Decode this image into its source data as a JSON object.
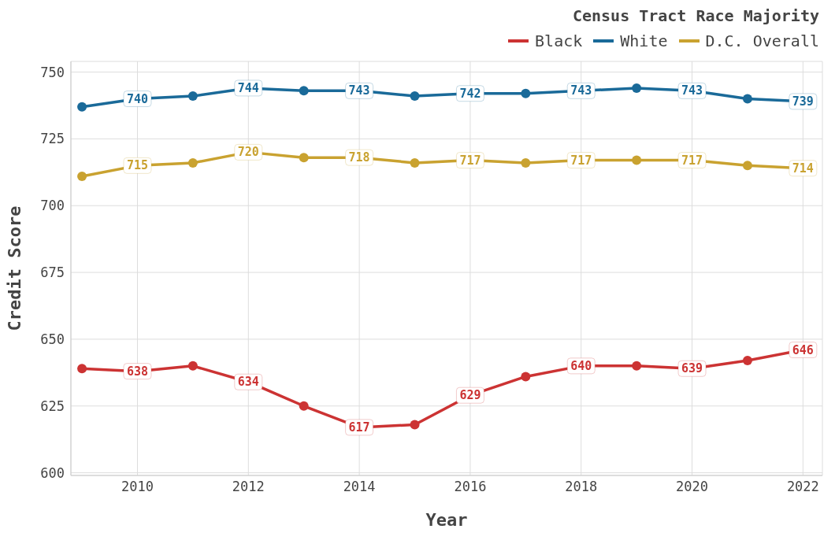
{
  "chart_data": {
    "type": "line",
    "xlabel": "Year",
    "ylabel": "Credit Score",
    "legend_title": "Census Tract Race Majority",
    "legend": "top right",
    "grid": true,
    "marker": "circle",
    "line_style": "solid",
    "x": [
      2009,
      2010,
      2011,
      2012,
      2013,
      2014,
      2015,
      2016,
      2017,
      2018,
      2019,
      2020,
      2021,
      2022
    ],
    "xlim": [
      2008.8,
      2022.35
    ],
    "xticks": [
      2010,
      2012,
      2014,
      2016,
      2018,
      2020,
      2022
    ],
    "ylim": [
      599,
      754
    ],
    "yticks": [
      600,
      625,
      650,
      675,
      700,
      725,
      750
    ],
    "series": [
      {
        "name": "Black",
        "color": "#cc3333",
        "values": [
          639,
          638,
          640,
          634,
          625,
          617,
          618,
          629,
          636,
          640,
          640,
          639,
          642,
          646
        ],
        "value_labels": [
          null,
          "638",
          null,
          "634",
          null,
          "617",
          null,
          "629",
          null,
          "640",
          null,
          "639",
          null,
          "646"
        ]
      },
      {
        "name": "White",
        "color": "#1a6a99",
        "values": [
          737,
          740,
          741,
          744,
          743,
          743,
          741,
          742,
          742,
          743,
          744,
          743,
          740,
          739
        ],
        "value_labels": [
          null,
          "740",
          null,
          "744",
          null,
          "743",
          null,
          "742",
          null,
          "743",
          null,
          "743",
          null,
          "739"
        ]
      },
      {
        "name": "D.C. Overall",
        "color": "#c9a230",
        "values": [
          711,
          715,
          716,
          720,
          718,
          718,
          716,
          717,
          716,
          717,
          717,
          717,
          715,
          714
        ],
        "value_labels": [
          null,
          "715",
          null,
          "720",
          null,
          "718",
          null,
          "717",
          null,
          "717",
          null,
          "717",
          null,
          "714"
        ]
      }
    ]
  }
}
